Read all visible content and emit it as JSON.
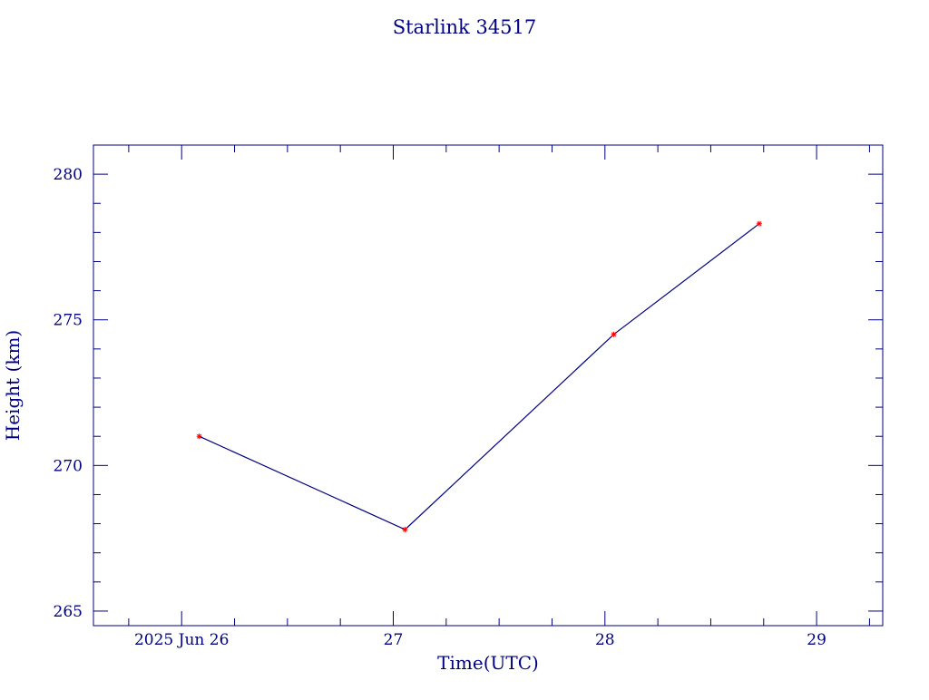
{
  "chart_data": {
    "type": "line",
    "title": "Starlink 34517",
    "xlabel": "Time(UTC)",
    "ylabel": "Height (km)",
    "x_ticks": [
      {
        "value": "2025-06-26T00:00",
        "label": "2025 Jun 26"
      },
      {
        "value": "2025-06-27T00:00",
        "label": "27"
      },
      {
        "value": "2025-06-28T00:00",
        "label": "28"
      },
      {
        "value": "2025-06-29T00:00",
        "label": "29"
      }
    ],
    "y_ticks": [
      265,
      270,
      275,
      280
    ],
    "xlim": [
      "2025-06-25T14:00",
      "2025-06-29T07:30"
    ],
    "ylim": [
      264.5,
      281
    ],
    "grid": false,
    "series": [
      {
        "x": [
          "2025-06-26T02:00",
          "2025-06-27T01:20",
          "2025-06-28T01:00",
          "2025-06-28T17:30"
        ],
        "y": [
          271.0,
          267.8,
          274.5,
          278.3
        ]
      }
    ],
    "colors": {
      "axis": "#000080",
      "line": "#000080",
      "marker": "#ff0000"
    }
  }
}
